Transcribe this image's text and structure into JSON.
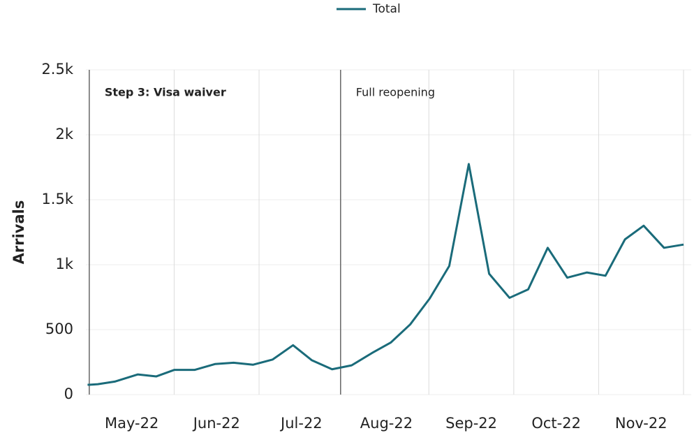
{
  "chart_data": {
    "type": "line",
    "y_label": "Arrivals",
    "x": [
      -0.02,
      0.1,
      0.3,
      0.57,
      0.79,
      1.0,
      1.24,
      1.48,
      1.7,
      1.93,
      2.16,
      2.4,
      2.62,
      2.86,
      3.09,
      3.33,
      3.55,
      3.78,
      4.01,
      4.24,
      4.47,
      4.71,
      4.95,
      5.17,
      5.4,
      5.63,
      5.86,
      6.08,
      6.31,
      6.53,
      6.77,
      7.0
    ],
    "series": [
      {
        "name": "Total",
        "color": "#1a6b7a",
        "values": [
          75,
          80,
          100,
          155,
          140,
          190,
          190,
          235,
          245,
          230,
          270,
          380,
          265,
          195,
          225,
          320,
          400,
          540,
          740,
          990,
          1775,
          930,
          745,
          810,
          1130,
          900,
          940,
          915,
          1195,
          1300,
          1130,
          1155
        ]
      }
    ],
    "xlim": [
      -0.04,
      7.09
    ],
    "xticks": [
      {
        "value": 0.5,
        "label": "May-22"
      },
      {
        "value": 1.5,
        "label": "Jun-22"
      },
      {
        "value": 2.5,
        "label": "Jul-22"
      },
      {
        "value": 3.5,
        "label": "Aug-22"
      },
      {
        "value": 4.5,
        "label": "Sep-22"
      },
      {
        "value": 5.5,
        "label": "Oct-22"
      },
      {
        "value": 6.5,
        "label": "Nov-22"
      }
    ],
    "x_grid_lines": [
      1,
      2,
      4,
      5,
      6,
      7
    ],
    "ylim": [
      0,
      2500
    ],
    "yticks": [
      0,
      500,
      {
        "value": 1000,
        "label": "1k"
      },
      {
        "value": 1500,
        "label": "1.5k"
      },
      {
        "value": 2000,
        "label": "2k"
      },
      {
        "value": 2500,
        "label": "2.5k"
      }
    ],
    "grid": true,
    "legend": "top",
    "annotations": [
      {
        "text": "Step 3: Visa waiver",
        "x": 0.0,
        "color": "#1a6b7a",
        "bold": true
      },
      {
        "text": "Full reopening",
        "x": 2.96,
        "color": "#333333",
        "bold": false
      }
    ]
  }
}
